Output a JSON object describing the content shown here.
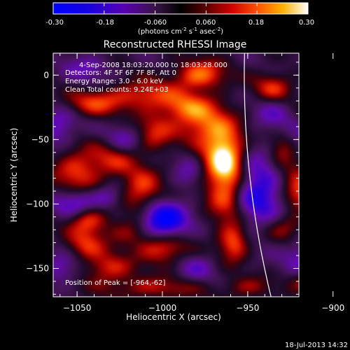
{
  "colorbar": {
    "ticks": [
      "-0.30",
      "-0.18",
      "-0.060",
      "0.060",
      "0.18",
      "0.30"
    ],
    "range": [
      -0.3,
      0.3
    ],
    "units_prefix": "(photons cm",
    "units_sup1": "-2",
    "units_mid": " s",
    "units_sup2": "-1",
    "units_mid2": " asec",
    "units_sup3": "-2",
    "units_suffix": ")"
  },
  "annotations": {
    "time": "4-Sep-2008 18:03:20.000 to 18:03:28.000",
    "detectors": "Detectors: 4F 5F 6F 7F 8F, Att 0",
    "energy": "Energy Range: 3.0 - 6.0 keV",
    "clean": "Clean    Total counts: 9.24E+03",
    "peak": "Position of Peak = [-964,-62]"
  },
  "footer": {
    "date": "18-Jul-2013 14:32"
  },
  "colors": {
    "limb": "#ffffff",
    "background": "#000000",
    "text": "#ffffff"
  },
  "chart_data": {
    "type": "heatmap",
    "title": "Reconstructed RHESSI Image",
    "xlabel": "Heliocentric X (arcsec)",
    "ylabel": "Heliocentric Y (arcsec)",
    "xlim": [
      -1064,
      -920
    ],
    "ylim": [
      -172,
      17
    ],
    "xticks": [
      -1050,
      -1000,
      -950,
      -900
    ],
    "yticks": [
      0,
      -50,
      -100,
      -150
    ],
    "xtick_labels": [
      "−1050",
      "−1000",
      "−950",
      "−900"
    ],
    "ytick_labels": [
      "0",
      "−50",
      "−100",
      "−150"
    ],
    "value_range": [
      -0.3,
      0.3
    ],
    "peak_position": [
      -964,
      -62
    ],
    "blobs": [
      {
        "x": -964,
        "y": -62,
        "sx": 8,
        "sy": 14,
        "v": 0.3
      },
      {
        "x": -962,
        "y": -90,
        "sx": 8,
        "sy": 18,
        "v": 0.24
      },
      {
        "x": -975,
        "y": -40,
        "sx": 12,
        "sy": 10,
        "v": 0.18
      },
      {
        "x": -958,
        "y": -130,
        "sx": 6,
        "sy": 10,
        "v": 0.2
      },
      {
        "x": -985,
        "y": -25,
        "sx": 12,
        "sy": 8,
        "v": 0.18
      },
      {
        "x": -1010,
        "y": -15,
        "sx": 14,
        "sy": 8,
        "v": 0.16
      },
      {
        "x": -1040,
        "y": -22,
        "sx": 12,
        "sy": 7,
        "v": 0.16
      },
      {
        "x": -978,
        "y": 0,
        "sx": 10,
        "sy": 8,
        "v": 0.22
      },
      {
        "x": -1005,
        "y": -45,
        "sx": 8,
        "sy": 10,
        "v": 0.14
      },
      {
        "x": -1012,
        "y": -90,
        "sx": 8,
        "sy": 12,
        "v": 0.18
      },
      {
        "x": -1028,
        "y": -65,
        "sx": 10,
        "sy": 10,
        "v": 0.13
      },
      {
        "x": -1050,
        "y": -75,
        "sx": 10,
        "sy": 12,
        "v": 0.17
      },
      {
        "x": -1044,
        "y": -112,
        "sx": 8,
        "sy": 8,
        "v": 0.2
      },
      {
        "x": -1045,
        "y": -132,
        "sx": 8,
        "sy": 8,
        "v": 0.14
      },
      {
        "x": -1032,
        "y": -150,
        "sx": 10,
        "sy": 8,
        "v": 0.15
      },
      {
        "x": -1000,
        "y": -135,
        "sx": 10,
        "sy": 8,
        "v": 0.18
      },
      {
        "x": -1018,
        "y": -122,
        "sx": 10,
        "sy": 8,
        "v": 0.12
      },
      {
        "x": -1005,
        "y": -165,
        "sx": 20,
        "sy": 6,
        "v": 0.12
      },
      {
        "x": -950,
        "y": -165,
        "sx": 10,
        "sy": 6,
        "v": 0.1
      },
      {
        "x": -900,
        "y": -30,
        "sx": 8,
        "sy": 20,
        "v": 0.18
      },
      {
        "x": -888,
        "y": -55,
        "sx": 8,
        "sy": 10,
        "v": 0.22
      },
      {
        "x": -935,
        "y": -10,
        "sx": 8,
        "sy": 8,
        "v": 0.16
      },
      {
        "x": -930,
        "y": -60,
        "sx": 6,
        "sy": 10,
        "v": 0.12
      },
      {
        "x": -920,
        "y": -75,
        "sx": 8,
        "sy": 14,
        "v": 0.2
      },
      {
        "x": -915,
        "y": -95,
        "sx": 8,
        "sy": 8,
        "v": 0.15
      },
      {
        "x": -928,
        "y": -118,
        "sx": 8,
        "sy": 8,
        "v": 0.13
      },
      {
        "x": -896,
        "y": -112,
        "sx": 8,
        "sy": 8,
        "v": 0.14
      },
      {
        "x": -898,
        "y": -135,
        "sx": 6,
        "sy": 8,
        "v": 0.22
      },
      {
        "x": -913,
        "y": -160,
        "sx": 8,
        "sy": 6,
        "v": 0.14
      },
      {
        "x": -1000,
        "y": -113,
        "sx": 10,
        "sy": 10,
        "v": -0.3
      },
      {
        "x": -1050,
        "y": -100,
        "sx": 10,
        "sy": 8,
        "v": -0.18
      },
      {
        "x": -945,
        "y": -90,
        "sx": 12,
        "sy": 20,
        "v": -0.22
      },
      {
        "x": -918,
        "y": -60,
        "sx": 8,
        "sy": 12,
        "v": -0.16
      },
      {
        "x": -905,
        "y": -100,
        "sx": 8,
        "sy": 8,
        "v": -0.14
      },
      {
        "x": -915,
        "y": -140,
        "sx": 10,
        "sy": 10,
        "v": -0.14
      },
      {
        "x": -1022,
        "y": -50,
        "sx": 8,
        "sy": 8,
        "v": -0.12
      },
      {
        "x": -1062,
        "y": -40,
        "sx": 8,
        "sy": 10,
        "v": -0.14
      },
      {
        "x": -1060,
        "y": -150,
        "sx": 8,
        "sy": 8,
        "v": -0.12
      },
      {
        "x": -980,
        "y": -150,
        "sx": 8,
        "sy": 8,
        "v": -0.1
      },
      {
        "x": -1045,
        "y": 5,
        "sx": 10,
        "sy": 8,
        "v": -0.1
      },
      {
        "x": -935,
        "y": -30,
        "sx": 8,
        "sy": 10,
        "v": -0.1
      },
      {
        "x": -1032,
        "y": -95,
        "sx": 6,
        "sy": 6,
        "v": -0.1
      },
      {
        "x": -985,
        "y": -75,
        "sx": 6,
        "sy": 10,
        "v": -0.08
      }
    ]
  }
}
